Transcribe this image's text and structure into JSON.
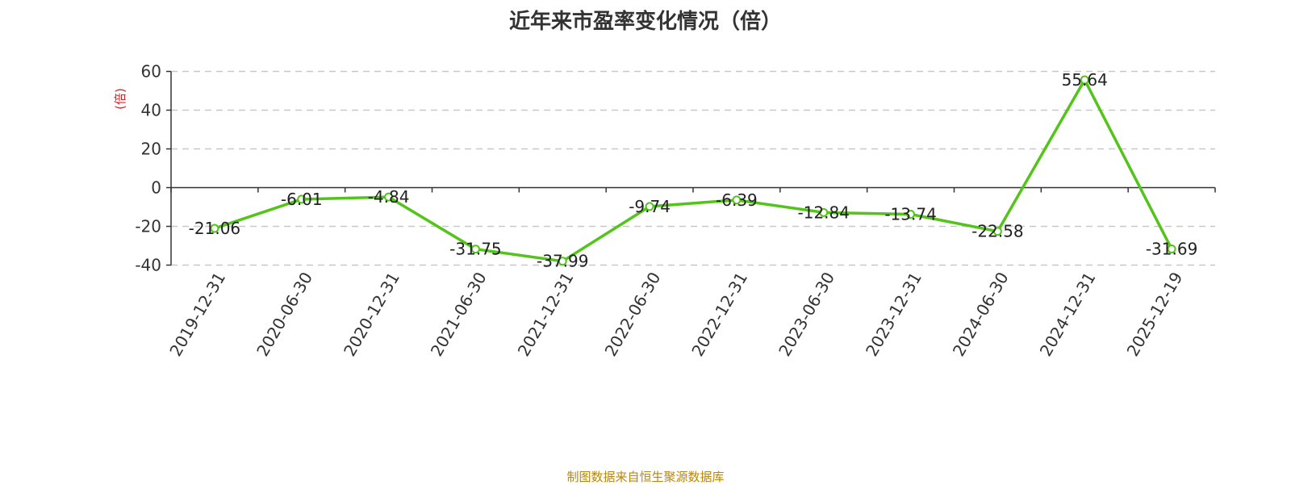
{
  "title": "近年来市盈率变化情况（倍）",
  "source_note": "制图数据来自恒生聚源数据库",
  "colors": {
    "line": "#52c41a",
    "ylabel": "#e02020",
    "grid": "#c8c8c8",
    "axis": "#333333",
    "source": "#b8860b"
  },
  "chart_data": {
    "type": "line",
    "title": "近年来市盈率变化情况（倍）",
    "xlabel": "",
    "ylabel": "(倍)",
    "ylim": [
      -40,
      60
    ],
    "yticks": [
      60,
      40,
      20,
      0,
      -20,
      -40
    ],
    "grid": true,
    "categories": [
      "2019-12-31",
      "2020-06-30",
      "2020-12-31",
      "2021-06-30",
      "2021-12-31",
      "2022-06-30",
      "2022-12-31",
      "2023-06-30",
      "2023-12-31",
      "2024-06-30",
      "2024-12-31",
      "2025-12-19"
    ],
    "values": [
      -21.06,
      -6.01,
      -4.84,
      -31.75,
      -37.99,
      -9.74,
      -6.39,
      -12.84,
      -13.74,
      -22.58,
      55.64,
      -31.69
    ],
    "labels": [
      "-21.06",
      "-6.01",
      "-4.84",
      "-31.75",
      "-37.99",
      "-9.74",
      "-6.39",
      "-12.84",
      "-13.74",
      "-22.58",
      "55.64",
      "-31.69"
    ]
  }
}
